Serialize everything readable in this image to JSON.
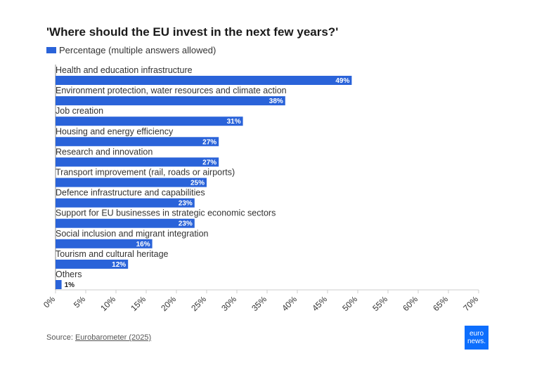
{
  "header": {
    "title": "'Where should the EU invest in the next few years?'"
  },
  "footer": {
    "source_prefix": "Source: ",
    "source_link": "Eurobarometer (2025)",
    "logo_line1": "euro",
    "logo_line2": "news."
  },
  "colors": {
    "bar": "#2a63d9",
    "axis": "#cccccc",
    "logo": "#0d6efd"
  },
  "chart_data": {
    "type": "bar",
    "orientation": "horizontal",
    "title": "'Where should the EU invest in the next few years?'",
    "legend": "top-left",
    "categories": [
      "Health and education infrastructure",
      "Environment protection, water resources and climate action",
      "Job creation",
      "Housing and energy efficiency",
      "Research and innovation",
      "Transport improvement (rail, roads or airports)",
      "Defence infrastructure and capabilities",
      "Support for EU businesses in strategic economic sectors",
      "Social inclusion and migrant integration",
      "Tourism and cultural heritage",
      "Others"
    ],
    "series": [
      {
        "name": "Percentage (multiple answers allowed)",
        "values": [
          49,
          38,
          31,
          27,
          27,
          25,
          23,
          23,
          16,
          12,
          1
        ],
        "labels": [
          "49%",
          "38%",
          "31%",
          "27%",
          "27%",
          "25%",
          "23%",
          "23%",
          "16%",
          "12%",
          "1%"
        ]
      }
    ],
    "xlim": [
      0,
      70
    ],
    "ticks": [
      0,
      5,
      10,
      15,
      20,
      25,
      30,
      35,
      40,
      45,
      50,
      55,
      60,
      65,
      70
    ],
    "tick_labels": [
      "0%",
      "5%",
      "10%",
      "15%",
      "20%",
      "25%",
      "30%",
      "35%",
      "40%",
      "45%",
      "50%",
      "55%",
      "60%",
      "65%",
      "70%"
    ],
    "grid": false
  }
}
